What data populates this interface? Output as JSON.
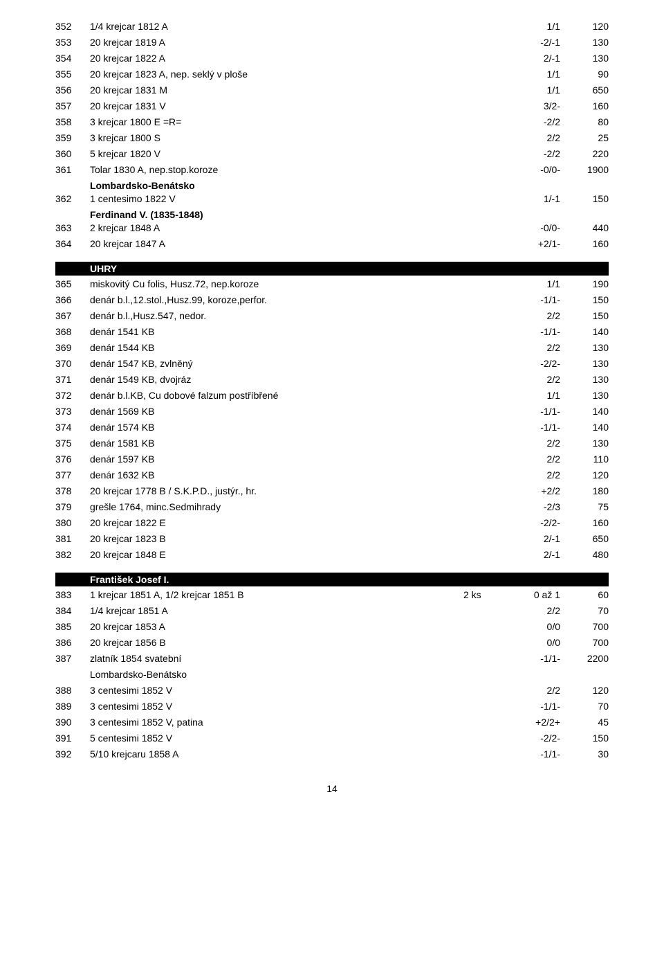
{
  "rows1": [
    {
      "n": "352",
      "d": "1/4 krejcar 1812 A",
      "g": "1/1",
      "p": "120"
    },
    {
      "n": "353",
      "d": "20 krejcar 1819 A",
      "g": "-2/-1",
      "p": "130"
    },
    {
      "n": "354",
      "d": "20 krejcar 1822 A",
      "g": "2/-1",
      "p": "130"
    },
    {
      "n": "355",
      "d": "20 krejcar 1823 A, nep. seklý v ploše",
      "g": "1/1",
      "p": "90"
    },
    {
      "n": "356",
      "d": "20 krejcar 1831 M",
      "g": "1/1",
      "p": "650"
    },
    {
      "n": "357",
      "d": "20 krejcar 1831 V",
      "g": "3/2-",
      "p": "160"
    },
    {
      "n": "358",
      "d": "3 krejcar 1800 E =R=",
      "g": "-2/2",
      "p": "80"
    },
    {
      "n": "359",
      "d": "3 krejcar 1800 S",
      "g": "2/2",
      "p": "25"
    },
    {
      "n": "360",
      "d": "5 krejcar 1820 V",
      "g": "-2/2",
      "p": "220"
    },
    {
      "n": "361",
      "d": "Tolar 1830 A, nep.stop.koroze",
      "g": "-0/0-",
      "p": "1900"
    }
  ],
  "sub1": "Lombardsko-Benátsko",
  "rows1b": [
    {
      "n": "362",
      "d": "1 centesimo 1822 V",
      "g": "1/-1",
      "p": "150"
    }
  ],
  "sub2": "Ferdinand V. (1835-1848)",
  "rows1c": [
    {
      "n": "363",
      "d": "2 krejcar 1848 A",
      "g": "-0/0-",
      "p": "440"
    },
    {
      "n": "364",
      "d": "20 krejcar 1847 A",
      "g": "+2/1-",
      "p": "160"
    }
  ],
  "section_uhry": "UHRY",
  "rows2": [
    {
      "n": "365",
      "d": "miskovitý Cu folis, Husz.72, nep.koroze",
      "g": "1/1",
      "p": "190"
    },
    {
      "n": "366",
      "d": "denár b.l.,12.stol.,Husz.99, koroze,perfor.",
      "g": "-1/1-",
      "p": "150"
    },
    {
      "n": "367",
      "d": "denár b.l.,Husz.547, nedor.",
      "g": "2/2",
      "p": "150"
    },
    {
      "n": "368",
      "d": "denár 1541 KB",
      "g": "-1/1-",
      "p": "140"
    },
    {
      "n": "369",
      "d": "denár 1544 KB",
      "g": "2/2",
      "p": "130"
    },
    {
      "n": "370",
      "d": "denár 1547 KB, zvlněný",
      "g": "-2/2-",
      "p": "130"
    },
    {
      "n": "371",
      "d": "denár 1549 KB, dvojráz",
      "g": "2/2",
      "p": "130"
    },
    {
      "n": "372",
      "d": "denár b.l.KB, Cu dobové falzum postříbřené",
      "g": "1/1",
      "p": "130"
    },
    {
      "n": "373",
      "d": "denár 1569 KB",
      "g": "-1/1-",
      "p": "140"
    },
    {
      "n": "374",
      "d": "denár 1574 KB",
      "g": "-1/1-",
      "p": "140"
    },
    {
      "n": "375",
      "d": "denár 1581 KB",
      "g": "2/2",
      "p": "130"
    },
    {
      "n": "376",
      "d": "denár 1597 KB",
      "g": "2/2",
      "p": "110"
    },
    {
      "n": "377",
      "d": "denár 1632 KB",
      "g": "2/2",
      "p": "120"
    },
    {
      "n": "378",
      "d": "20 krejcar 1778 B / S.K.P.D., justýr., hr.",
      "g": "+2/2",
      "p": "180"
    },
    {
      "n": "379",
      "d": "grešle 1764, minc.Sedmihrady",
      "g": "-2/3",
      "p": "75"
    },
    {
      "n": "380",
      "d": "20 krejcar 1822 E",
      "g": "-2/2-",
      "p": "160"
    },
    {
      "n": "381",
      "d": "20 krejcar 1823 B",
      "g": "2/-1",
      "p": "650"
    },
    {
      "n": "382",
      "d": "20 krejcar 1848 E",
      "g": "2/-1",
      "p": "480"
    }
  ],
  "section_fj": "František Josef I.",
  "rows3": [
    {
      "n": "383",
      "d": "1 krejcar 1851 A, 1/2 krejcar 1851 B",
      "q": "2 ks",
      "g": "0 až 1",
      "p": "60"
    },
    {
      "n": "384",
      "d": "1/4 krejcar 1851 A",
      "q": "",
      "g": "2/2",
      "p": "70"
    },
    {
      "n": "385",
      "d": "20 krejcar 1853 A",
      "q": "",
      "g": "0/0",
      "p": "700"
    },
    {
      "n": "386",
      "d": "20 krejcar 1856 B",
      "q": "",
      "g": "0/0",
      "p": "700"
    },
    {
      "n": "387",
      "d": "zlatník 1854 svatební",
      "q": "",
      "g": "-1/1-",
      "p": "2200"
    }
  ],
  "sub3": "Lombardsko-Benátsko",
  "rows3b": [
    {
      "n": "388",
      "d": "3 centesimi 1852 V",
      "q": "",
      "g": "2/2",
      "p": "120"
    },
    {
      "n": "389",
      "d": "3 centesimi 1852 V",
      "q": "",
      "g": "-1/1-",
      "p": "70"
    },
    {
      "n": "390",
      "d": "3 centesimi 1852 V, patina",
      "q": "",
      "g": "+2/2+",
      "p": "45"
    },
    {
      "n": "391",
      "d": "5 centesimi 1852 V",
      "q": "",
      "g": "-2/2-",
      "p": "150"
    },
    {
      "n": "392",
      "d": "5/10 krejcaru 1858 A",
      "q": "",
      "g": "-1/1-",
      "p": "30"
    }
  ],
  "page_number": "14"
}
